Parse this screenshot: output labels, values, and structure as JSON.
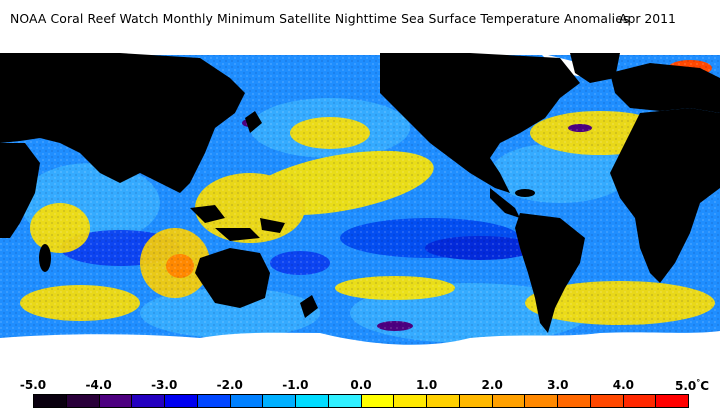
{
  "header": {
    "title": "NOAA Coral Reef Watch Monthly Minimum Satellite Nighttime Sea Surface Temperature Anomalies",
    "date": "Apr 2011"
  },
  "legend": {
    "labels": [
      "-5.0",
      "-4.0",
      "-3.0",
      "-2.0",
      "-1.0",
      "0.0",
      "1.0",
      "2.0",
      "3.0",
      "4.0",
      "5.0"
    ],
    "unit": "°C",
    "colors": [
      "#0a000f",
      "#2a003a",
      "#4d0080",
      "#2400c0",
      "#0000f0",
      "#0046ff",
      "#0080ff",
      "#00b0ff",
      "#00dcff",
      "#30f0ff",
      "#ffff00",
      "#ffe800",
      "#ffd000",
      "#ffb800",
      "#ffa000",
      "#ff8800",
      "#ff6800",
      "#ff4800",
      "#ff2800",
      "#ff0000"
    ]
  },
  "map": {
    "land_color": "#000000",
    "ice_color": "#ffffff",
    "ocean_base_color": "#1e8cff"
  }
}
